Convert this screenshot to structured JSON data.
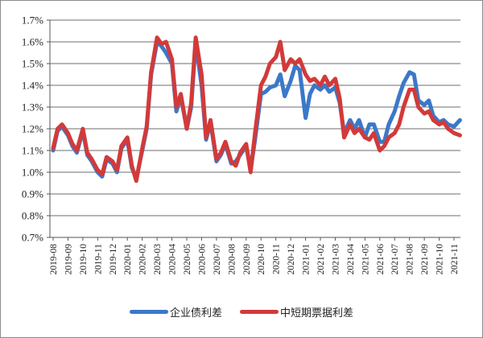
{
  "chart_data": {
    "type": "line",
    "title": "",
    "xlabel": "",
    "ylabel": "",
    "ylim": [
      0.7,
      1.7
    ],
    "yticks": [
      "0.7%",
      "0.8%",
      "0.9%",
      "1.0%",
      "1.1%",
      "1.2%",
      "1.3%",
      "1.4%",
      "1.5%",
      "1.6%",
      "1.7%"
    ],
    "categories": [
      "2019-08",
      "2019-09",
      "2019-10",
      "2019-11",
      "2019-12",
      "2020-01",
      "2020-02",
      "2020-03",
      "2020-04",
      "2020-05",
      "2020-06",
      "2020-07",
      "2020-08",
      "2020-09",
      "2020-10",
      "2020-11",
      "2020-12",
      "2021-01",
      "2021-02",
      "2021-03",
      "2021-04",
      "2021-05",
      "2021-06",
      "2021-07",
      "2021-08",
      "2021-09",
      "2021-10",
      "2021-11"
    ],
    "grid": true,
    "legend_position": "bottom",
    "x": [
      0,
      0.3,
      0.6,
      1.0,
      1.3,
      1.6,
      2.0,
      2.3,
      2.6,
      3.0,
      3.3,
      3.6,
      4.0,
      4.3,
      4.6,
      5.0,
      5.3,
      5.6,
      6.0,
      6.3,
      6.6,
      7.0,
      7.3,
      7.6,
      8.0,
      8.3,
      8.6,
      9.0,
      9.3,
      9.6,
      10.0,
      10.3,
      10.6,
      11.0,
      11.3,
      11.6,
      12.0,
      12.3,
      12.6,
      13.0,
      13.3,
      13.6,
      14.0,
      14.3,
      14.6,
      15.0,
      15.3,
      15.6,
      16.0,
      16.3,
      16.6,
      17.0,
      17.3,
      17.6,
      18.0,
      18.3,
      18.6,
      19.0,
      19.3,
      19.6,
      20.0,
      20.3,
      20.6,
      21.0,
      21.3,
      21.6,
      22.0,
      22.3,
      22.6,
      23.0,
      23.3,
      23.6,
      24.0,
      24.3,
      24.6,
      25.0,
      25.3,
      25.6,
      26.0,
      26.3,
      26.6,
      27.0,
      27.4
    ],
    "series": [
      {
        "name": "企业债利差",
        "color": "#3b78c9",
        "values": [
          1.1,
          1.19,
          1.21,
          1.17,
          1.12,
          1.09,
          1.19,
          1.08,
          1.05,
          1.0,
          0.98,
          1.06,
          1.04,
          1.0,
          1.11,
          1.15,
          1.02,
          0.97,
          1.1,
          1.2,
          1.45,
          1.6,
          1.58,
          1.55,
          1.5,
          1.28,
          1.35,
          1.2,
          1.3,
          1.6,
          1.4,
          1.15,
          1.23,
          1.05,
          1.08,
          1.13,
          1.04,
          1.05,
          1.08,
          1.12,
          1.01,
          1.15,
          1.36,
          1.37,
          1.39,
          1.4,
          1.45,
          1.35,
          1.42,
          1.49,
          1.47,
          1.25,
          1.36,
          1.4,
          1.38,
          1.4,
          1.37,
          1.39,
          1.32,
          1.18,
          1.24,
          1.2,
          1.24,
          1.16,
          1.22,
          1.22,
          1.14,
          1.14,
          1.22,
          1.28,
          1.35,
          1.41,
          1.46,
          1.45,
          1.33,
          1.31,
          1.33,
          1.26,
          1.23,
          1.24,
          1.22,
          1.21,
          1.24
        ]
      },
      {
        "name": "中短期票据利差",
        "color": "#d23a3a",
        "values": [
          1.11,
          1.2,
          1.22,
          1.18,
          1.13,
          1.1,
          1.2,
          1.09,
          1.06,
          1.01,
          0.99,
          1.07,
          1.05,
          1.01,
          1.12,
          1.16,
          1.03,
          0.96,
          1.11,
          1.21,
          1.46,
          1.62,
          1.59,
          1.6,
          1.52,
          1.3,
          1.36,
          1.2,
          1.32,
          1.62,
          1.45,
          1.16,
          1.24,
          1.06,
          1.09,
          1.14,
          1.05,
          1.03,
          1.09,
          1.13,
          1.0,
          1.18,
          1.4,
          1.44,
          1.5,
          1.53,
          1.6,
          1.47,
          1.52,
          1.5,
          1.52,
          1.45,
          1.42,
          1.43,
          1.4,
          1.44,
          1.4,
          1.43,
          1.34,
          1.16,
          1.22,
          1.18,
          1.2,
          1.16,
          1.15,
          1.18,
          1.1,
          1.12,
          1.16,
          1.18,
          1.22,
          1.3,
          1.38,
          1.38,
          1.3,
          1.27,
          1.28,
          1.24,
          1.22,
          1.23,
          1.2,
          1.18,
          1.17
        ]
      }
    ]
  },
  "legend": {
    "items": [
      {
        "label": "企业债利差",
        "color": "#3b78c9"
      },
      {
        "label": "中短期票据利差",
        "color": "#d23a3a"
      }
    ]
  }
}
